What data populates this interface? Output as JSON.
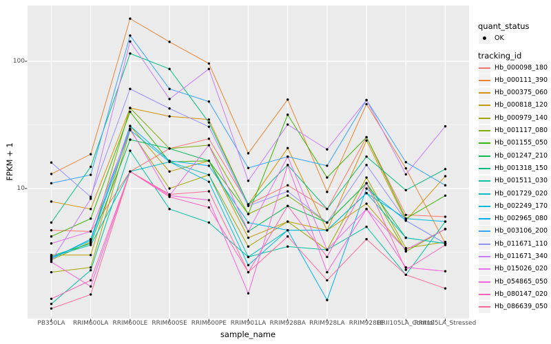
{
  "figure": {
    "background": "#FFFFFF",
    "panel_background": "#EBEBEB",
    "gridline_color": "#FFFFFF",
    "point_color": "#000000",
    "tick_color": "#333333",
    "axis_text_color": "#4D4D4D"
  },
  "axes": {
    "x": {
      "title": "sample_name",
      "categories": [
        "PB350LA",
        "RRIM600LA",
        "RRIM600LE",
        "RRIM600SE",
        "RRIM600PE",
        "RRIM901LA",
        "RRIM928BA",
        "RRIM928LA",
        "RRIM928LE",
        "RRII105LA_Control",
        "RRII105LA_Stressed"
      ]
    },
    "y": {
      "title": "FPKM + 1",
      "scale": "log10",
      "ticks": [
        {
          "label": "100",
          "value": 100
        },
        {
          "label": "10",
          "value": 10
        }
      ],
      "minor_ticks": [
        31.62,
        3.162
      ]
    }
  },
  "legend": {
    "position": "right",
    "quant_status": {
      "title": "quant_status",
      "items": [
        {
          "label": "OK",
          "symbol": "point",
          "color": "#000000"
        }
      ]
    },
    "tracking_id": {
      "title": "tracking_id",
      "items": [
        {
          "label": "Hb_000098_180",
          "color": "#F8766D"
        },
        {
          "label": "Hb_000111_390",
          "color": "#EA8331"
        },
        {
          "label": "Hb_000375_060",
          "color": "#D89000"
        },
        {
          "label": "Hb_000818_120",
          "color": "#C09B00"
        },
        {
          "label": "Hb_000979_140",
          "color": "#A3A500"
        },
        {
          "label": "Hb_001117_080",
          "color": "#7CAE00"
        },
        {
          "label": "Hb_001155_050",
          "color": "#39B600"
        },
        {
          "label": "Hb_001247_210",
          "color": "#00BB4E"
        },
        {
          "label": "Hb_001318_150",
          "color": "#00BF7D"
        },
        {
          "label": "Hb_001511_030",
          "color": "#00C1A3"
        },
        {
          "label": "Hb_001729_020",
          "color": "#00BFC4"
        },
        {
          "label": "Hb_002249_170",
          "color": "#00BAE0"
        },
        {
          "label": "Hb_002965_080",
          "color": "#00B0F6"
        },
        {
          "label": "Hb_003106_200",
          "color": "#35A2FF"
        },
        {
          "label": "Hb_011671_110",
          "color": "#9590FF"
        },
        {
          "label": "Hb_011671_340",
          "color": "#C77CFF"
        },
        {
          "label": "Hb_015026_020",
          "color": "#E76BF3"
        },
        {
          "label": "Hb_054865_050",
          "color": "#FA62DB"
        },
        {
          "label": "Hb_080147_020",
          "color": "#FF62BC"
        },
        {
          "label": "Hb_086639_050",
          "color": "#FF6A98"
        }
      ]
    }
  },
  "chart_data": {
    "type": "line",
    "title": "",
    "xlabel": "sample_name",
    "ylabel": "FPKM + 1",
    "yscale": "log10",
    "ylim": [
      0.95,
      274
    ],
    "grid": "on",
    "legend_position": "right",
    "marker": "black point at every value (quant_status OK)",
    "categories": [
      "PB350LA",
      "RRIM600LA",
      "RRIM600LE",
      "RRIM600SE",
      "RRIM600PE",
      "RRIM901LA",
      "RRIM928BA",
      "RRIM928LA",
      "RRIM928LE",
      "RRII105LA_Control",
      "RRII105LA_Stressed"
    ],
    "series": [
      {
        "name": "Hb_000098_180",
        "color": "#F8766D",
        "values": [
          4.7,
          4.6,
          13.6,
          20.6,
          24.6,
          7.5,
          10.6,
          6.9,
          25.3,
          6.2,
          6.0
        ]
      },
      {
        "name": "Hb_000111_390",
        "color": "#EA8331",
        "values": [
          13,
          18.6,
          216,
          142,
          96,
          18.9,
          50,
          9.4,
          46,
          14.4,
          3.7
        ]
      },
      {
        "name": "Hb_000375_060",
        "color": "#D89000",
        "values": [
          7.9,
          6.9,
          42.9,
          36.9,
          34.8,
          7.5,
          20.8,
          4.7,
          23.8,
          5.6,
          12.5
        ]
      },
      {
        "name": "Hb_000818_120",
        "color": "#C09B00",
        "values": [
          3.0,
          3.0,
          31,
          13.6,
          16.5,
          4.1,
          5.5,
          4.7,
          7.6,
          3.3,
          4.8
        ]
      },
      {
        "name": "Hb_000979_140",
        "color": "#A3A500",
        "values": [
          2.2,
          2.4,
          28.8,
          10,
          12.8,
          3.5,
          5.5,
          3.3,
          12.2,
          3.4,
          3.8
        ]
      },
      {
        "name": "Hb_001117_080",
        "color": "#7CAE00",
        "values": [
          2.75,
          3.8,
          42.9,
          20.6,
          21.9,
          6.3,
          8.8,
          5.4,
          11,
          3.2,
          4.8
        ]
      },
      {
        "name": "Hb_001155_050",
        "color": "#39B600",
        "values": [
          4.2,
          5.8,
          40,
          16.2,
          16.5,
          6.3,
          38,
          12.2,
          25.3,
          5.8,
          8.8
        ]
      },
      {
        "name": "Hb_001247_210",
        "color": "#00BB4E",
        "values": [
          2.95,
          3.7,
          24.2,
          20.6,
          16.5,
          4.6,
          7.3,
          5.4,
          11,
          4.1,
          3.7
        ]
      },
      {
        "name": "Hb_001318_150",
        "color": "#00BF7D",
        "values": [
          5.4,
          14.8,
          115,
          87,
          33,
          7.5,
          15.3,
          6.9,
          17.8,
          9.7,
          14.2
        ]
      },
      {
        "name": "Hb_001511_030",
        "color": "#00C1A3",
        "values": [
          1.24,
          2.28,
          19.8,
          6.9,
          5.4,
          2.9,
          3.5,
          3.3,
          5.0,
          2.1,
          5.5
        ]
      },
      {
        "name": "Hb_001729_020",
        "color": "#00BFC4",
        "values": [
          2.9,
          3.6,
          13.6,
          16.2,
          12.8,
          2.9,
          4.7,
          4.7,
          9.2,
          4.1,
          3.7
        ]
      },
      {
        "name": "Hb_002249_170",
        "color": "#00BAE0",
        "values": [
          2.85,
          3.9,
          28.8,
          16.2,
          11.3,
          2.5,
          4.7,
          4.7,
          9.2,
          5.8,
          5.5
        ]
      },
      {
        "name": "Hb_002965_080",
        "color": "#00B0F6",
        "values": [
          2.8,
          4.0,
          31,
          16.5,
          15.1,
          5.4,
          4.7,
          1.33,
          10,
          5.6,
          3.7
        ]
      },
      {
        "name": "Hb_003106_200",
        "color": "#35A2FF",
        "values": [
          11,
          12.8,
          159,
          60.6,
          48.2,
          14.5,
          17.8,
          15.1,
          49.5,
          16.1,
          10.6
        ]
      },
      {
        "name": "Hb_011671_110",
        "color": "#9590FF",
        "values": [
          16,
          8.6,
          60.6,
          42.5,
          30.6,
          7.3,
          9.5,
          5.4,
          15.3,
          5.6,
          3.7
        ]
      },
      {
        "name": "Hb_011671_340",
        "color": "#C77CFF",
        "values": [
          2.7,
          8.3,
          143,
          50.5,
          87,
          11.5,
          31.8,
          20.3,
          49.5,
          12.9,
          30.8
        ]
      },
      {
        "name": "Hb_015026_020",
        "color": "#E76BF3",
        "values": [
          3.7,
          4.6,
          29.5,
          8.8,
          21.9,
          4.6,
          17.8,
          3.3,
          6.9,
          3.3,
          4.8
        ]
      },
      {
        "name": "Hb_054865_050",
        "color": "#FA62DB",
        "values": [
          2.65,
          1.7,
          13.6,
          8.8,
          8.1,
          1.5,
          15.3,
          2.2,
          6.9,
          2.4,
          2.24
        ]
      },
      {
        "name": "Hb_080147_020",
        "color": "#FF62BC",
        "values": [
          1.36,
          1.9,
          13.6,
          8.6,
          7.1,
          2.2,
          7.3,
          2.9,
          11,
          2.3,
          3.6
        ]
      },
      {
        "name": "Hb_086639_050",
        "color": "#FF6A98",
        "values": [
          1.14,
          1.47,
          13.6,
          9.0,
          9.5,
          2.2,
          4.2,
          1.9,
          4.0,
          2.1,
          1.64
        ]
      }
    ]
  }
}
